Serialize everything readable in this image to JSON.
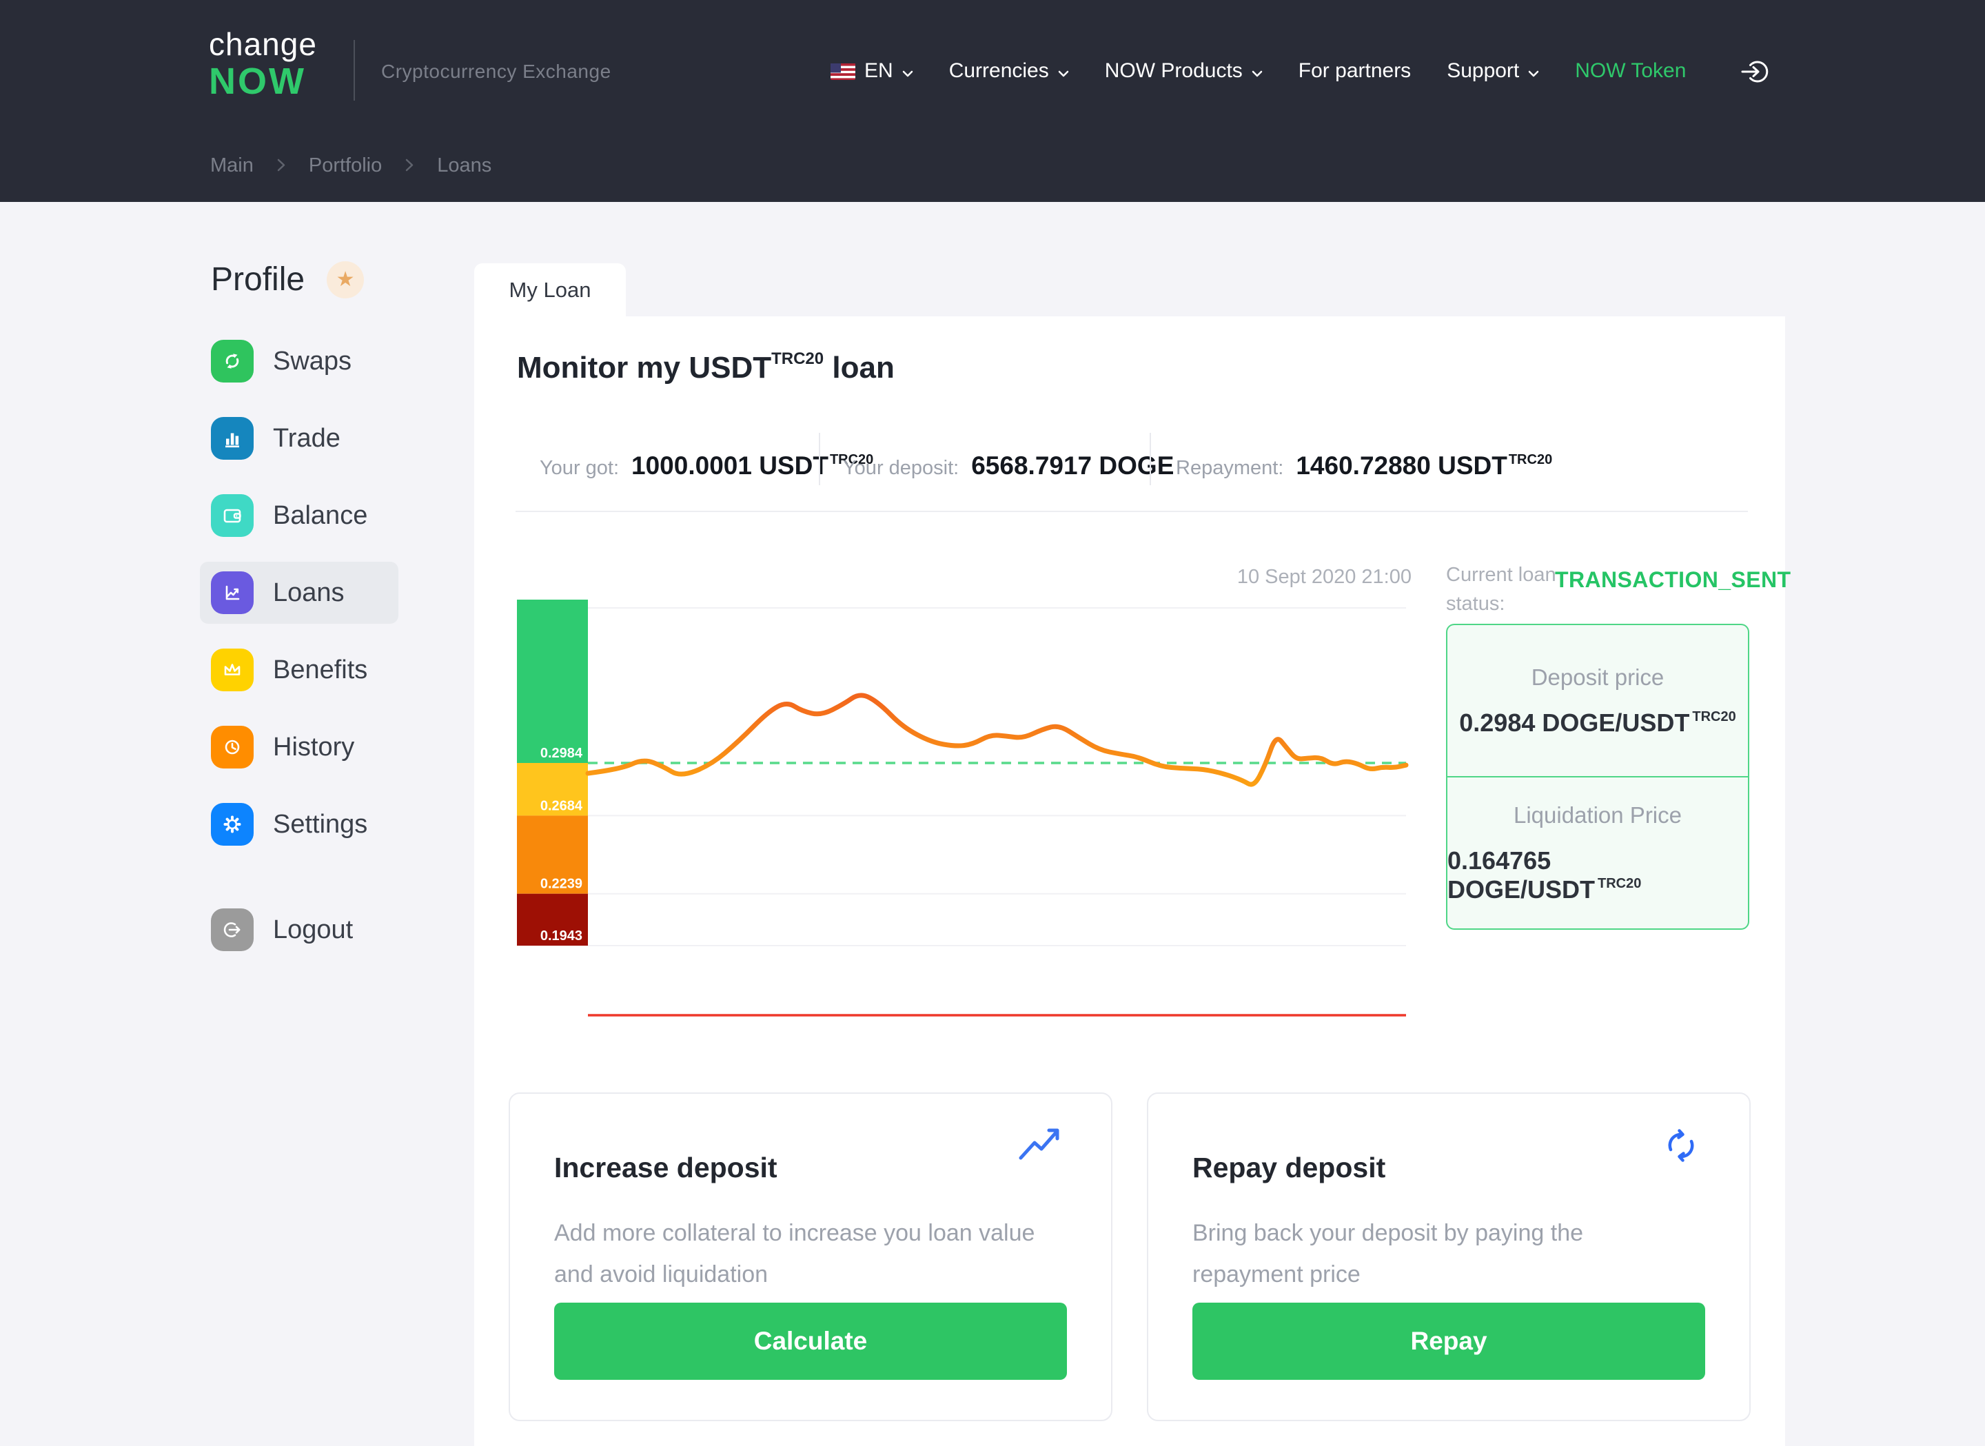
{
  "header": {
    "logo": {
      "line1": "change",
      "line2": "NOW",
      "tagline": "Cryptocurrency Exchange"
    },
    "language": "EN",
    "nav": {
      "currencies": "Currencies",
      "products": "NOW Products",
      "partners": "For partners",
      "support": "Support",
      "token": "NOW Token"
    },
    "breadcrumb": {
      "home": "Main",
      "section": "Portfolio",
      "current": "Loans"
    }
  },
  "sidebar": {
    "title": "Profile",
    "star": "★",
    "items": [
      {
        "label": "Swaps",
        "color": "#2FC45E"
      },
      {
        "label": "Trade",
        "color": "#1586BE"
      },
      {
        "label": "Balance",
        "color": "#3FD9C5"
      },
      {
        "label": "Loans",
        "color": "#6A5AE0"
      },
      {
        "label": "Benefits",
        "color": "#FFD200"
      },
      {
        "label": "History",
        "color": "#FF8D00"
      },
      {
        "label": "Settings",
        "color": "#0D84FE"
      }
    ],
    "logout": {
      "label": "Logout",
      "color": "#9B9B9B"
    }
  },
  "main": {
    "tab": "My Loan",
    "title": {
      "prefix": "Monitor my USDT",
      "sup": "TRC20",
      "suffix": " loan"
    },
    "stats": [
      {
        "label": "Your got:",
        "value": "1000.0001 USDT",
        "sup": "TRC20"
      },
      {
        "label": "Your deposit:",
        "value": "6568.7917 DOGE",
        "sup": ""
      },
      {
        "label": "Repayment:",
        "value": "1460.72880 USDT",
        "sup": "TRC20"
      }
    ],
    "status": {
      "date": "10 Sept 2020 21:00",
      "label_line1": "Current loan",
      "label_line2": "status:",
      "value": "TRANSACTION_SENT"
    },
    "price_boxes": [
      {
        "title": "Deposit price",
        "value": "0.2984 DOGE/USDT",
        "sup": "TRC20"
      },
      {
        "title": "Liquidation Price",
        "value": "0.164765 DOGE/USDT",
        "sup": "TRC20"
      }
    ],
    "cards": [
      {
        "title": "Increase deposit",
        "description": "Add more collateral to increase you loan value and avoid liquidation",
        "button": "Calculate",
        "icon": "trending-up-icon"
      },
      {
        "title": "Repay deposit",
        "description": "Bring back your deposit by paying the repayment price",
        "button": "Repay",
        "icon": "refresh-icon"
      }
    ]
  },
  "chart_data": {
    "type": "line",
    "pair": "DOGE/USDT",
    "date_label": "10 Sept 2020 21:00",
    "deposit_price": 0.2984,
    "liquidation_price": 0.164765,
    "dashed_level": 0.2984,
    "bands": [
      {
        "from": 0.3915,
        "to": 0.2984,
        "color": "#2FCB71",
        "label": "0.2984"
      },
      {
        "from": 0.2984,
        "to": 0.2684,
        "color": "#FFC51D",
        "label": "0.2684"
      },
      {
        "from": 0.2684,
        "to": 0.2239,
        "color": "#F8890B",
        "label": "0.2239"
      },
      {
        "from": 0.2239,
        "to": 0.1943,
        "color": "#9E1005",
        "label": "0.1943"
      }
    ],
    "grid_color": "#F1F1F4",
    "dashed_color": "#57DA8A",
    "baseline_color": "#EE392B",
    "line_color_top": "#F2651D",
    "line_color_bottom": "#FBA013",
    "points": [
      [
        0.0,
        0.2925
      ],
      [
        0.04,
        0.2949
      ],
      [
        0.068,
        0.3008
      ],
      [
        0.092,
        0.2964
      ],
      [
        0.113,
        0.2905
      ],
      [
        0.15,
        0.2972
      ],
      [
        0.185,
        0.311
      ],
      [
        0.22,
        0.3275
      ],
      [
        0.243,
        0.3334
      ],
      [
        0.262,
        0.3279
      ],
      [
        0.285,
        0.3255
      ],
      [
        0.312,
        0.3318
      ],
      [
        0.333,
        0.3385
      ],
      [
        0.356,
        0.3326
      ],
      [
        0.385,
        0.3188
      ],
      [
        0.42,
        0.3102
      ],
      [
        0.45,
        0.3078
      ],
      [
        0.47,
        0.309
      ],
      [
        0.492,
        0.3145
      ],
      [
        0.512,
        0.3137
      ],
      [
        0.532,
        0.3125
      ],
      [
        0.556,
        0.3177
      ],
      [
        0.576,
        0.32
      ],
      [
        0.6,
        0.3129
      ],
      [
        0.625,
        0.3059
      ],
      [
        0.65,
        0.3035
      ],
      [
        0.672,
        0.3019
      ],
      [
        0.7,
        0.2964
      ],
      [
        0.726,
        0.2953
      ],
      [
        0.752,
        0.2949
      ],
      [
        0.776,
        0.2925
      ],
      [
        0.8,
        0.2886
      ],
      [
        0.814,
        0.2847
      ],
      [
        0.828,
        0.2972
      ],
      [
        0.841,
        0.3145
      ],
      [
        0.854,
        0.307
      ],
      [
        0.866,
        0.3004
      ],
      [
        0.88,
        0.3012
      ],
      [
        0.896,
        0.3016
      ],
      [
        0.911,
        0.2972
      ],
      [
        0.926,
        0.2996
      ],
      [
        0.941,
        0.298
      ],
      [
        0.956,
        0.2945
      ],
      [
        0.971,
        0.2961
      ],
      [
        0.986,
        0.2957
      ],
      [
        1.0,
        0.2972
      ]
    ]
  },
  "colors": {
    "header_bg": "#292C37",
    "page_bg": "#F4F4F8",
    "accent_green": "#2FC96B",
    "status_green": "#25C465",
    "button_green": "#2EC564",
    "box_border": "#4FD687",
    "box_bg": "#F3FBF6",
    "selected_row": "#E8EAEE"
  }
}
